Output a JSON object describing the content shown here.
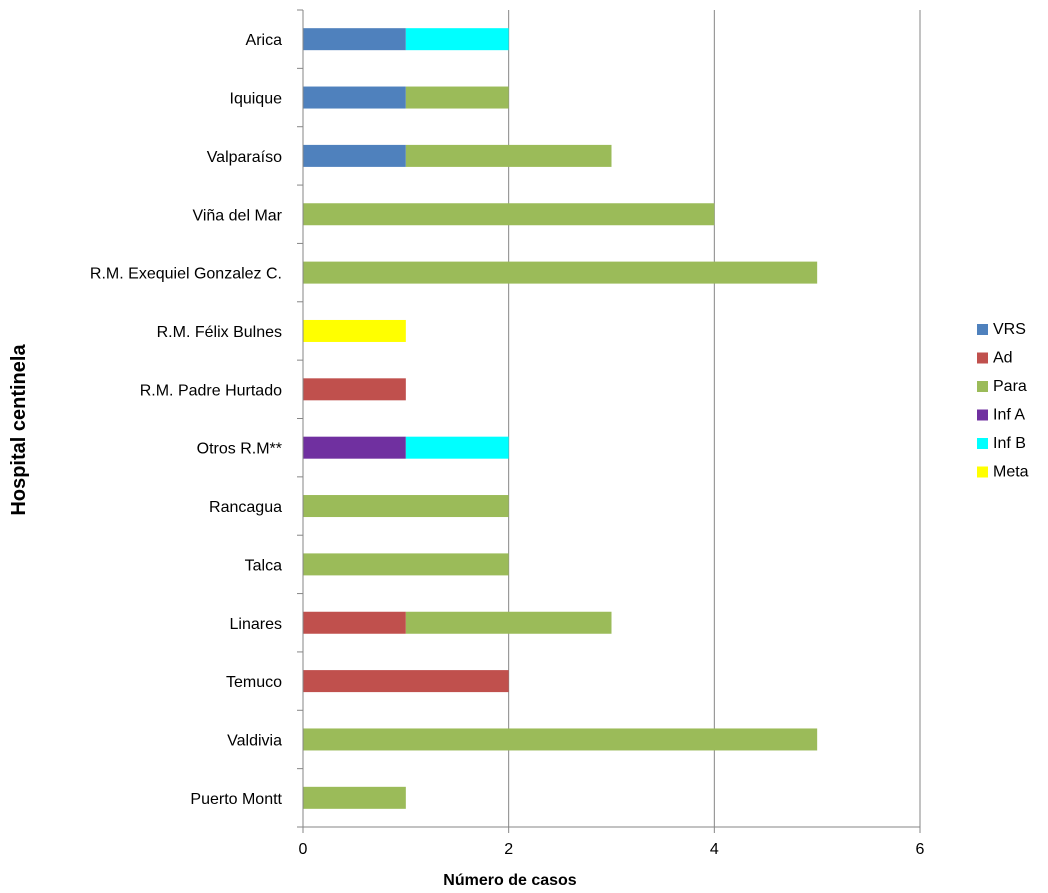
{
  "chart_data": {
    "type": "bar",
    "orientation": "horizontal",
    "stacked": true,
    "categories": [
      "Arica",
      "Iquique",
      "Valparaíso",
      "Viña del Mar",
      "R.M. Exequiel Gonzalez C.",
      "R.M. Félix Bulnes",
      "R.M. Padre Hurtado",
      "Otros R.M**",
      "Rancagua",
      "Talca",
      "Linares",
      "Temuco",
      "Valdivia",
      "Puerto Montt"
    ],
    "series": [
      {
        "name": "VRS",
        "color": "#4F81BD",
        "values": [
          1,
          1,
          1,
          0,
          0,
          0,
          0,
          0,
          0,
          0,
          0,
          0,
          0,
          0
        ]
      },
      {
        "name": "Ad",
        "color": "#C0504D",
        "values": [
          0,
          0,
          0,
          0,
          0,
          0,
          1,
          0,
          0,
          0,
          1,
          2,
          0,
          0
        ]
      },
      {
        "name": "Para",
        "color": "#9BBB59",
        "values": [
          0,
          1,
          2,
          4,
          5,
          0,
          0,
          0,
          2,
          2,
          2,
          0,
          5,
          1
        ]
      },
      {
        "name": "Inf A",
        "color": "#7030A0",
        "values": [
          0,
          0,
          0,
          0,
          0,
          0,
          0,
          1,
          0,
          0,
          0,
          0,
          0,
          0
        ]
      },
      {
        "name": "Inf B",
        "color": "#00FFFF",
        "values": [
          1,
          0,
          0,
          0,
          0,
          0,
          0,
          1,
          0,
          0,
          0,
          0,
          0,
          0
        ]
      },
      {
        "name": "Meta",
        "color": "#FFFF00",
        "values": [
          0,
          0,
          0,
          0,
          0,
          1,
          0,
          0,
          0,
          0,
          0,
          0,
          0,
          0
        ]
      }
    ],
    "xlabel": "Número de casos",
    "ylabel": "Hospital centinela",
    "xlim": [
      0,
      6
    ],
    "xticks": [
      "0",
      "2",
      "4",
      "6"
    ],
    "grid": "vertical",
    "legend_position": "right"
  }
}
